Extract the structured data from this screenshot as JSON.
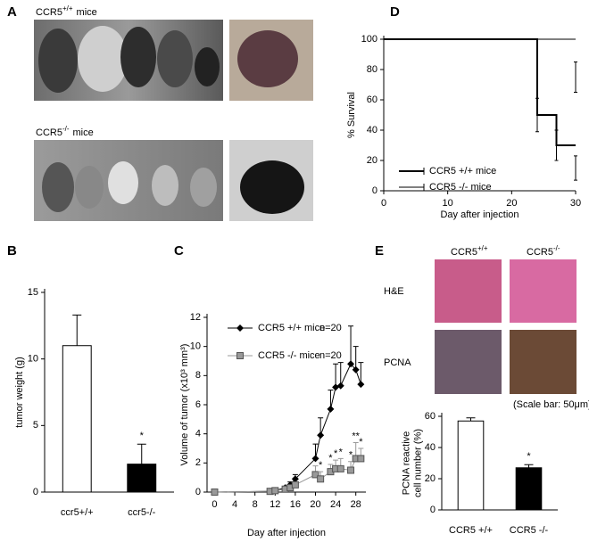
{
  "panel_a": {
    "panel": "A",
    "top_label": {
      "text": "CCR5",
      "sup": "+/+",
      "suffix": "mice"
    },
    "bottom_label": {
      "text": "CCR5",
      "sup": "-/-",
      "suffix": "mice"
    }
  },
  "panel_e_images": {
    "columns": [
      {
        "text": "CCR5",
        "sup": "+/+"
      },
      {
        "text": "CCR5",
        "sup": "-/-"
      }
    ],
    "rows": [
      "H&E",
      "PCNA"
    ],
    "scale_note": "(Scale bar: 50μm)"
  },
  "chart_data": [
    {
      "type": "bar",
      "panel": "B",
      "ylabel": [
        "tumor weight (g)"
      ],
      "categories": [
        "ccr5+/+",
        "ccr5-/-"
      ],
      "values": [
        11,
        2.1
      ],
      "errors": [
        2.3,
        1.5
      ],
      "colors": [
        "#ffffff",
        "#000000"
      ],
      "significance": [
        null,
        "*"
      ],
      "ylim": [
        0,
        15
      ],
      "yticks": [
        0,
        5,
        10,
        15
      ]
    },
    {
      "type": "line",
      "panel": "C",
      "ylabel": [
        "Volume of tumor (x10³ mm³)"
      ],
      "xlabel": "Day after injection",
      "x": [
        0,
        11,
        12,
        14,
        15,
        16,
        20,
        21,
        23,
        24,
        25,
        27,
        28,
        29
      ],
      "series": [
        {
          "name": "CCR5 +/+ mice",
          "note": "n=20",
          "color": "#000000",
          "marker": "diamond",
          "values": [
            0,
            0.05,
            0.1,
            0.3,
            0.5,
            0.9,
            2.3,
            3.9,
            5.7,
            7.2,
            7.3,
            8.8,
            8.4,
            7.4
          ],
          "errors": [
            0,
            0,
            0,
            0.1,
            0.2,
            0.3,
            1.0,
            1.2,
            1.3,
            1.6,
            1.6,
            2.6,
            1.6,
            1.5
          ]
        },
        {
          "name": "CCR5  -/- mice",
          "note": "n=20",
          "color": "#999999",
          "marker": "square",
          "values": [
            0,
            0.05,
            0.1,
            0.2,
            0.3,
            0.5,
            1.2,
            0.9,
            1.4,
            1.6,
            1.6,
            1.5,
            2.3,
            2.3
          ],
          "errors": [
            0,
            0,
            0,
            0.1,
            0.1,
            0.2,
            0.6,
            0.5,
            0.5,
            0.6,
            0.7,
            0.6,
            1.1,
            0.7
          ],
          "significance": [
            null,
            null,
            null,
            null,
            null,
            null,
            null,
            "*",
            "*",
            "*",
            "*",
            "*",
            "**",
            "*"
          ]
        }
      ],
      "xlim": [
        -1.5,
        30
      ],
      "xticks": [
        0,
        4,
        8,
        12,
        16,
        20,
        24,
        28
      ],
      "ylim": [
        0,
        12
      ],
      "yticks": [
        0,
        2,
        4,
        6,
        8,
        10,
        12
      ]
    },
    {
      "type": "line",
      "panel": "D",
      "ylabel": [
        "% Survival"
      ],
      "xlabel": "Day after injection",
      "series": [
        {
          "name": "CCR5 +/+ mice",
          "color": "#000000",
          "width": 2,
          "x": [
            0,
            24,
            24,
            27,
            27,
            30
          ],
          "values": [
            100,
            100,
            50,
            50,
            30,
            30
          ],
          "ci": [
            {
              "x": 24,
              "low": 39,
              "high": 61
            },
            {
              "x": 27,
              "low": 20,
              "high": 40
            },
            {
              "x": 30,
              "low": 7,
              "high": 23
            }
          ]
        },
        {
          "name": "CCR5  -/-  mice",
          "color": "#000000",
          "width": 1,
          "x": [
            0,
            30
          ],
          "values": [
            100,
            100
          ],
          "ci": [
            {
              "x": 30,
              "low": 65,
              "high": 85
            }
          ]
        }
      ],
      "xlim": [
        0,
        30
      ],
      "xticks": [
        0,
        10,
        20,
        30
      ],
      "ylim": [
        0,
        100
      ],
      "yticks": [
        0,
        20,
        40,
        60,
        80,
        100
      ]
    },
    {
      "type": "bar",
      "panel": "E",
      "ylabel": [
        "PCNA reactive",
        "cell number (%)"
      ],
      "categories": [
        "CCR5 +/+",
        "CCR5 -/-"
      ],
      "values": [
        57,
        27
      ],
      "errors": [
        2,
        2
      ],
      "colors": [
        "#ffffff",
        "#000000"
      ],
      "significance": [
        null,
        "*"
      ],
      "ylim": [
        0,
        60
      ],
      "yticks": [
        0,
        20,
        40,
        60
      ]
    }
  ]
}
